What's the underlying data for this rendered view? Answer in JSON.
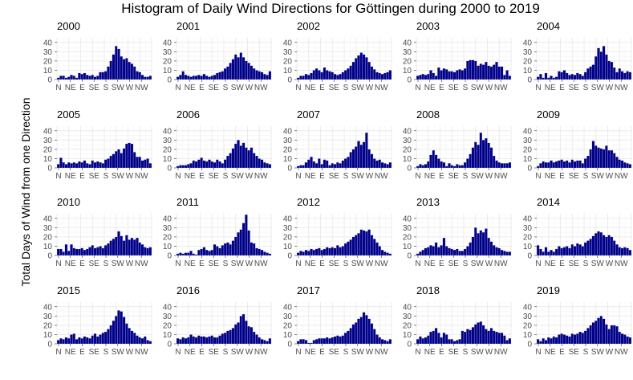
{
  "chart_data": {
    "type": "bar",
    "title": "Histogram of Daily Wind Directions for Göttingen during 2000 to 2019",
    "ylabel": "Total Days of Wind from one Direction",
    "xlabel": "",
    "ylim": [
      0,
      45
    ],
    "yticks": [
      "0",
      "10",
      "20",
      "30",
      "40"
    ],
    "yticks_minor": [
      "5",
      "15",
      "25",
      "35"
    ],
    "xtick_labels": [
      "N",
      "NE",
      "E",
      "SE",
      "S",
      "SW",
      "W",
      "NW"
    ],
    "grid": "on",
    "bins_per_panel": 36,
    "bar_color": "#00008b",
    "panels": [
      {
        "label": "2000",
        "values": [
          2,
          4,
          4,
          2,
          3,
          5,
          4,
          2,
          7,
          6,
          7,
          5,
          4,
          5,
          3,
          4,
          8,
          8,
          9,
          14,
          20,
          27,
          36,
          33,
          25,
          22,
          23,
          19,
          17,
          14,
          9,
          8,
          5,
          3,
          3,
          4
        ]
      },
      {
        "label": "2001",
        "values": [
          3,
          5,
          9,
          5,
          4,
          3,
          4,
          4,
          5,
          4,
          6,
          4,
          3,
          4,
          5,
          7,
          8,
          9,
          12,
          14,
          18,
          22,
          27,
          24,
          29,
          24,
          20,
          18,
          15,
          12,
          10,
          9,
          8,
          6,
          5,
          9
        ]
      },
      {
        "label": "2002",
        "values": [
          2,
          4,
          4,
          6,
          5,
          7,
          10,
          12,
          10,
          8,
          13,
          10,
          9,
          8,
          6,
          5,
          6,
          8,
          10,
          12,
          15,
          19,
          23,
          26,
          29,
          27,
          24,
          19,
          14,
          11,
          8,
          7,
          6,
          7,
          8,
          10
        ]
      },
      {
        "label": "2003",
        "values": [
          4,
          5,
          6,
          5,
          6,
          10,
          7,
          4,
          13,
          10,
          12,
          11,
          9,
          9,
          8,
          10,
          11,
          10,
          12,
          20,
          21,
          21,
          20,
          15,
          17,
          16,
          19,
          15,
          14,
          16,
          19,
          14,
          14,
          5,
          10,
          4
        ]
      },
      {
        "label": "2004",
        "values": [
          3,
          6,
          2,
          7,
          2,
          4,
          2,
          3,
          9,
          8,
          10,
          7,
          5,
          6,
          5,
          7,
          6,
          4,
          8,
          12,
          14,
          16,
          25,
          34,
          30,
          36,
          27,
          20,
          19,
          13,
          8,
          12,
          9,
          7,
          9,
          8
        ]
      },
      {
        "label": "2005",
        "values": [
          4,
          11,
          6,
          4,
          6,
          5,
          6,
          5,
          7,
          6,
          8,
          5,
          4,
          8,
          6,
          7,
          6,
          5,
          9,
          10,
          13,
          15,
          18,
          20,
          16,
          21,
          26,
          27,
          26,
          17,
          12,
          12,
          8,
          9,
          10,
          5
        ]
      },
      {
        "label": "2006",
        "values": [
          2,
          3,
          3,
          3,
          4,
          5,
          8,
          7,
          9,
          11,
          8,
          7,
          9,
          7,
          6,
          9,
          7,
          5,
          9,
          13,
          16,
          21,
          26,
          30,
          24,
          27,
          22,
          19,
          22,
          16,
          13,
          10,
          9,
          6,
          5,
          4
        ]
      },
      {
        "label": "2007",
        "values": [
          2,
          3,
          3,
          6,
          9,
          12,
          7,
          5,
          10,
          4,
          9,
          8,
          3,
          5,
          4,
          6,
          5,
          8,
          10,
          12,
          17,
          20,
          23,
          29,
          25,
          28,
          38,
          20,
          15,
          10,
          8,
          9,
          6,
          5,
          4,
          6
        ]
      },
      {
        "label": "2008",
        "values": [
          2,
          4,
          3,
          4,
          7,
          14,
          19,
          14,
          10,
          7,
          6,
          2,
          5,
          3,
          2,
          4,
          3,
          3,
          6,
          10,
          15,
          22,
          28,
          25,
          38,
          30,
          32,
          27,
          22,
          13,
          8,
          6,
          5,
          5,
          5,
          6
        ]
      },
      {
        "label": "2009",
        "values": [
          2,
          5,
          7,
          6,
          6,
          8,
          6,
          7,
          8,
          9,
          7,
          8,
          6,
          9,
          7,
          8,
          8,
          5,
          10,
          13,
          20,
          29,
          24,
          22,
          21,
          20,
          24,
          19,
          19,
          16,
          12,
          9,
          8,
          6,
          5,
          4
        ]
      },
      {
        "label": "2010",
        "values": [
          7,
          7,
          4,
          12,
          5,
          12,
          8,
          7,
          7,
          8,
          6,
          7,
          9,
          11,
          8,
          9,
          10,
          8,
          11,
          13,
          16,
          18,
          20,
          26,
          21,
          16,
          22,
          17,
          19,
          17,
          19,
          14,
          12,
          9,
          8,
          9
        ]
      },
      {
        "label": "2011",
        "values": [
          2,
          3,
          2,
          3,
          3,
          5,
          2,
          1,
          6,
          7,
          9,
          6,
          5,
          6,
          12,
          10,
          8,
          11,
          13,
          14,
          12,
          16,
          20,
          25,
          28,
          35,
          44,
          27,
          14,
          13,
          8,
          7,
          6,
          4,
          3,
          2
        ]
      },
      {
        "label": "2012",
        "values": [
          3,
          5,
          4,
          6,
          5,
          7,
          6,
          7,
          8,
          6,
          7,
          9,
          8,
          9,
          8,
          11,
          9,
          10,
          13,
          15,
          17,
          20,
          22,
          24,
          28,
          27,
          26,
          28,
          22,
          18,
          14,
          10,
          6,
          4,
          3,
          2
        ]
      },
      {
        "label": "2013",
        "values": [
          2,
          4,
          6,
          8,
          9,
          11,
          10,
          14,
          9,
          11,
          19,
          10,
          8,
          7,
          6,
          7,
          5,
          5,
          7,
          10,
          14,
          20,
          30,
          24,
          27,
          25,
          29,
          19,
          15,
          11,
          9,
          8,
          6,
          5,
          4,
          4
        ]
      },
      {
        "label": "2014",
        "values": [
          11,
          7,
          4,
          9,
          4,
          6,
          4,
          7,
          10,
          8,
          9,
          10,
          8,
          12,
          10,
          13,
          12,
          10,
          14,
          16,
          18,
          21,
          24,
          26,
          25,
          22,
          20,
          22,
          20,
          16,
          12,
          9,
          8,
          9,
          8,
          6
        ]
      },
      {
        "label": "2015",
        "values": [
          4,
          6,
          5,
          7,
          6,
          10,
          11,
          5,
          7,
          6,
          8,
          7,
          6,
          9,
          11,
          8,
          10,
          12,
          13,
          16,
          20,
          25,
          30,
          36,
          35,
          29,
          22,
          17,
          14,
          12,
          9,
          7,
          6,
          8,
          4,
          3
        ]
      },
      {
        "label": "2016",
        "values": [
          6,
          5,
          7,
          6,
          7,
          10,
          8,
          7,
          9,
          8,
          8,
          7,
          8,
          9,
          7,
          7,
          9,
          11,
          12,
          14,
          15,
          17,
          21,
          23,
          30,
          32,
          25,
          19,
          18,
          13,
          10,
          7,
          5,
          4,
          3,
          6
        ]
      },
      {
        "label": "2017",
        "values": [
          3,
          5,
          5,
          4,
          1,
          1,
          4,
          5,
          6,
          6,
          6,
          7,
          6,
          7,
          8,
          9,
          8,
          9,
          12,
          14,
          17,
          21,
          23,
          27,
          29,
          34,
          31,
          27,
          22,
          16,
          10,
          7,
          5,
          4,
          3,
          5
        ]
      },
      {
        "label": "2018",
        "values": [
          5,
          8,
          6,
          7,
          9,
          13,
          14,
          17,
          12,
          7,
          12,
          10,
          5,
          5,
          3,
          4,
          5,
          14,
          13,
          16,
          15,
          18,
          21,
          23,
          24,
          20,
          16,
          14,
          17,
          14,
          13,
          12,
          12,
          9,
          4,
          6
        ]
      },
      {
        "label": "2019",
        "values": [
          5,
          3,
          6,
          4,
          7,
          6,
          8,
          7,
          10,
          11,
          10,
          9,
          8,
          11,
          10,
          11,
          13,
          12,
          14,
          17,
          20,
          23,
          25,
          28,
          30,
          27,
          21,
          16,
          20,
          20,
          19,
          13,
          11,
          10,
          8,
          7
        ]
      }
    ]
  }
}
